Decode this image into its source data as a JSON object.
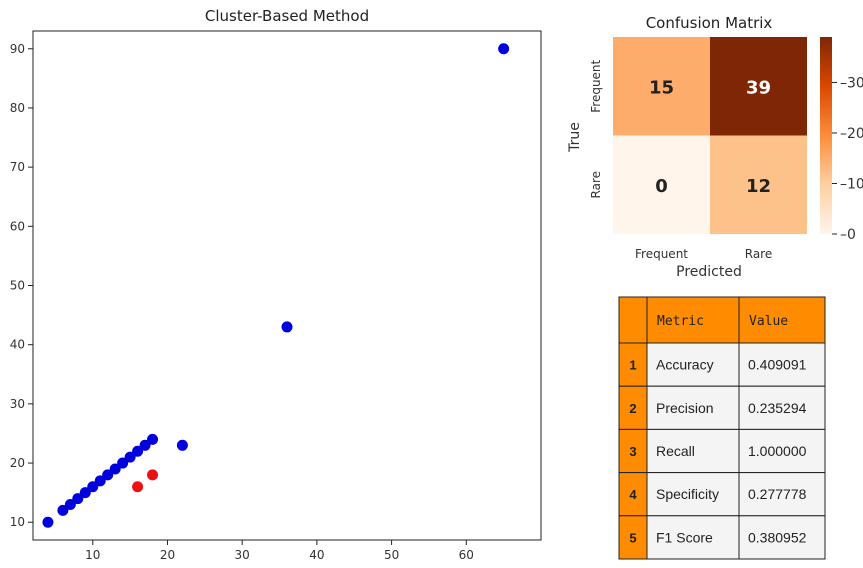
{
  "chart_data": [
    {
      "type": "scatter",
      "title": "Cluster-Based Method",
      "xlabel": "",
      "ylabel": "",
      "xlim": [
        2,
        70
      ],
      "ylim": [
        7,
        93
      ],
      "xticks": [
        10,
        20,
        30,
        40,
        50,
        60
      ],
      "yticks": [
        10,
        20,
        30,
        40,
        50,
        60,
        70,
        80,
        90
      ],
      "grid": false,
      "series": [
        {
          "color": "#0000dd",
          "points": [
            [
              4,
              10
            ],
            [
              6,
              12
            ],
            [
              7,
              13
            ],
            [
              8,
              14
            ],
            [
              9,
              15
            ],
            [
              10,
              16
            ],
            [
              11,
              17
            ],
            [
              12,
              18
            ],
            [
              13,
              19
            ],
            [
              14,
              20
            ],
            [
              15,
              21
            ],
            [
              16,
              22
            ],
            [
              17,
              23
            ],
            [
              18,
              24
            ],
            [
              22,
              23
            ],
            [
              36,
              43
            ],
            [
              65,
              90
            ]
          ]
        },
        {
          "color": "#ee1111",
          "points": [
            [
              16,
              16
            ],
            [
              18,
              18
            ]
          ]
        }
      ]
    },
    {
      "type": "heatmap",
      "title": "Confusion Matrix",
      "xlabel": "Predicted",
      "ylabel": "True",
      "row_labels": [
        "Frequent",
        "Rare"
      ],
      "col_labels": [
        "Frequent",
        "Rare"
      ],
      "values": [
        [
          15,
          39
        ],
        [
          0,
          12
        ]
      ],
      "colorbar": {
        "min": 0,
        "max": 39,
        "ticks": [
          0,
          10,
          20,
          30
        ]
      },
      "colormap": "Oranges"
    },
    {
      "type": "table",
      "header_color": "#ff8c00",
      "columns": [
        "",
        "Metric",
        "Value"
      ],
      "rows": [
        [
          "1",
          "Accuracy",
          "0.409091"
        ],
        [
          "2",
          "Precision",
          "0.235294"
        ],
        [
          "3",
          "Recall",
          "1.000000"
        ],
        [
          "4",
          "Specificity",
          "0.277778"
        ],
        [
          "5",
          "F1 Score",
          "0.380952"
        ]
      ]
    }
  ]
}
